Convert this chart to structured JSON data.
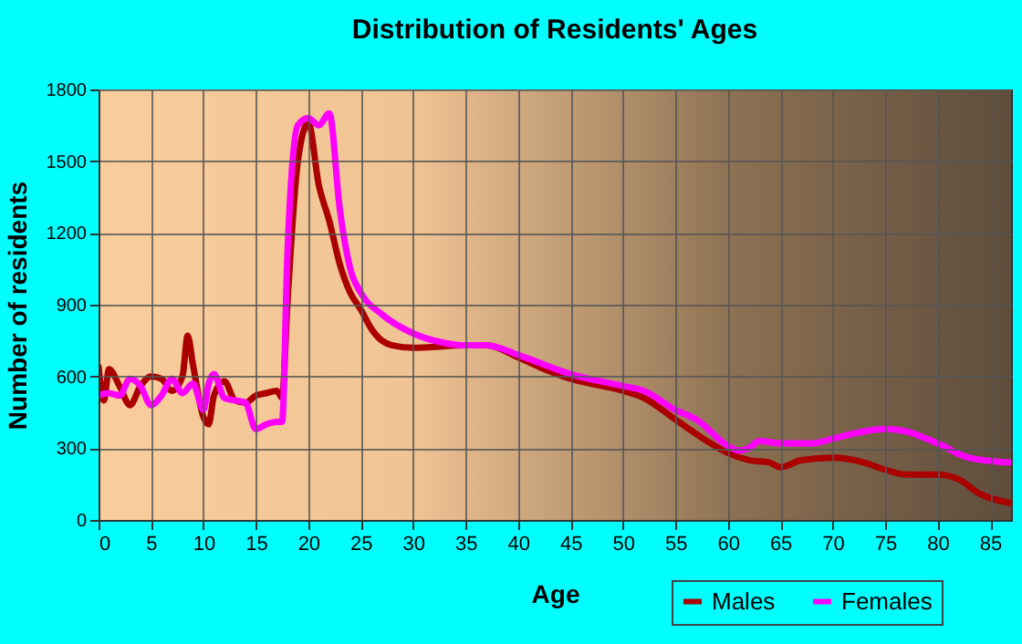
{
  "chart_data": {
    "type": "line",
    "title": "Distribution of Residents' Ages",
    "xlabel": "Age",
    "ylabel": "Number of residents",
    "xlim": [
      0,
      87
    ],
    "xticks": [
      0,
      5,
      10,
      15,
      20,
      25,
      30,
      35,
      40,
      45,
      50,
      55,
      60,
      65,
      70,
      75,
      80,
      85
    ],
    "ylim": [
      0,
      1800
    ],
    "yticks": [
      0,
      300,
      600,
      900,
      1200,
      1500,
      1800
    ],
    "grid": true,
    "legend": "bottom right",
    "marker": "none",
    "line_style": "solid",
    "series": [
      {
        "name": "Males",
        "color": "#aa0000",
        "x": [
          0,
          0.5,
          1,
          2,
          3,
          4,
          5,
          6,
          7,
          8,
          8.5,
          9,
          10,
          10.5,
          11,
          12,
          13,
          14,
          15,
          16,
          17,
          17.5,
          18,
          19,
          20,
          21,
          22,
          23,
          24,
          25,
          26,
          27,
          28,
          30,
          35,
          37,
          40,
          42,
          45,
          50,
          52,
          55,
          58,
          60,
          62,
          64,
          65,
          67,
          70,
          73,
          75,
          77,
          80,
          82,
          84,
          87
        ],
        "values": [
          640,
          500,
          630,
          560,
          480,
          560,
          600,
          590,
          540,
          600,
          770,
          650,
          430,
          400,
          520,
          580,
          500,
          490,
          520,
          530,
          540,
          510,
          900,
          1500,
          1660,
          1400,
          1250,
          1070,
          950,
          880,
          800,
          750,
          730,
          720,
          730,
          730,
          680,
          640,
          590,
          540,
          510,
          420,
          330,
          280,
          250,
          240,
          220,
          250,
          260,
          240,
          210,
          190,
          190,
          170,
          110,
          70
        ]
      },
      {
        "name": "Females",
        "color": "#ff00ff",
        "x": [
          0,
          1,
          2,
          3,
          4,
          5,
          6,
          7,
          8,
          9,
          10,
          10.5,
          11,
          12,
          13,
          14,
          15,
          16,
          17,
          17.5,
          18,
          19,
          20,
          21,
          22,
          23,
          24,
          25,
          27,
          30,
          33,
          35,
          37,
          40,
          45,
          50,
          52,
          55,
          57,
          60,
          61,
          62,
          63,
          65,
          68,
          70,
          73,
          75,
          77,
          80,
          83,
          87
        ],
        "values": [
          520,
          530,
          520,
          590,
          560,
          480,
          520,
          590,
          530,
          570,
          460,
          570,
          610,
          510,
          500,
          490,
          380,
          400,
          410,
          410,
          1100,
          1650,
          1680,
          1650,
          1700,
          1300,
          1050,
          950,
          860,
          780,
          740,
          730,
          730,
          690,
          610,
          560,
          540,
          460,
          420,
          310,
          290,
          300,
          330,
          320,
          320,
          340,
          370,
          380,
          370,
          320,
          260,
          240
        ]
      }
    ]
  }
}
